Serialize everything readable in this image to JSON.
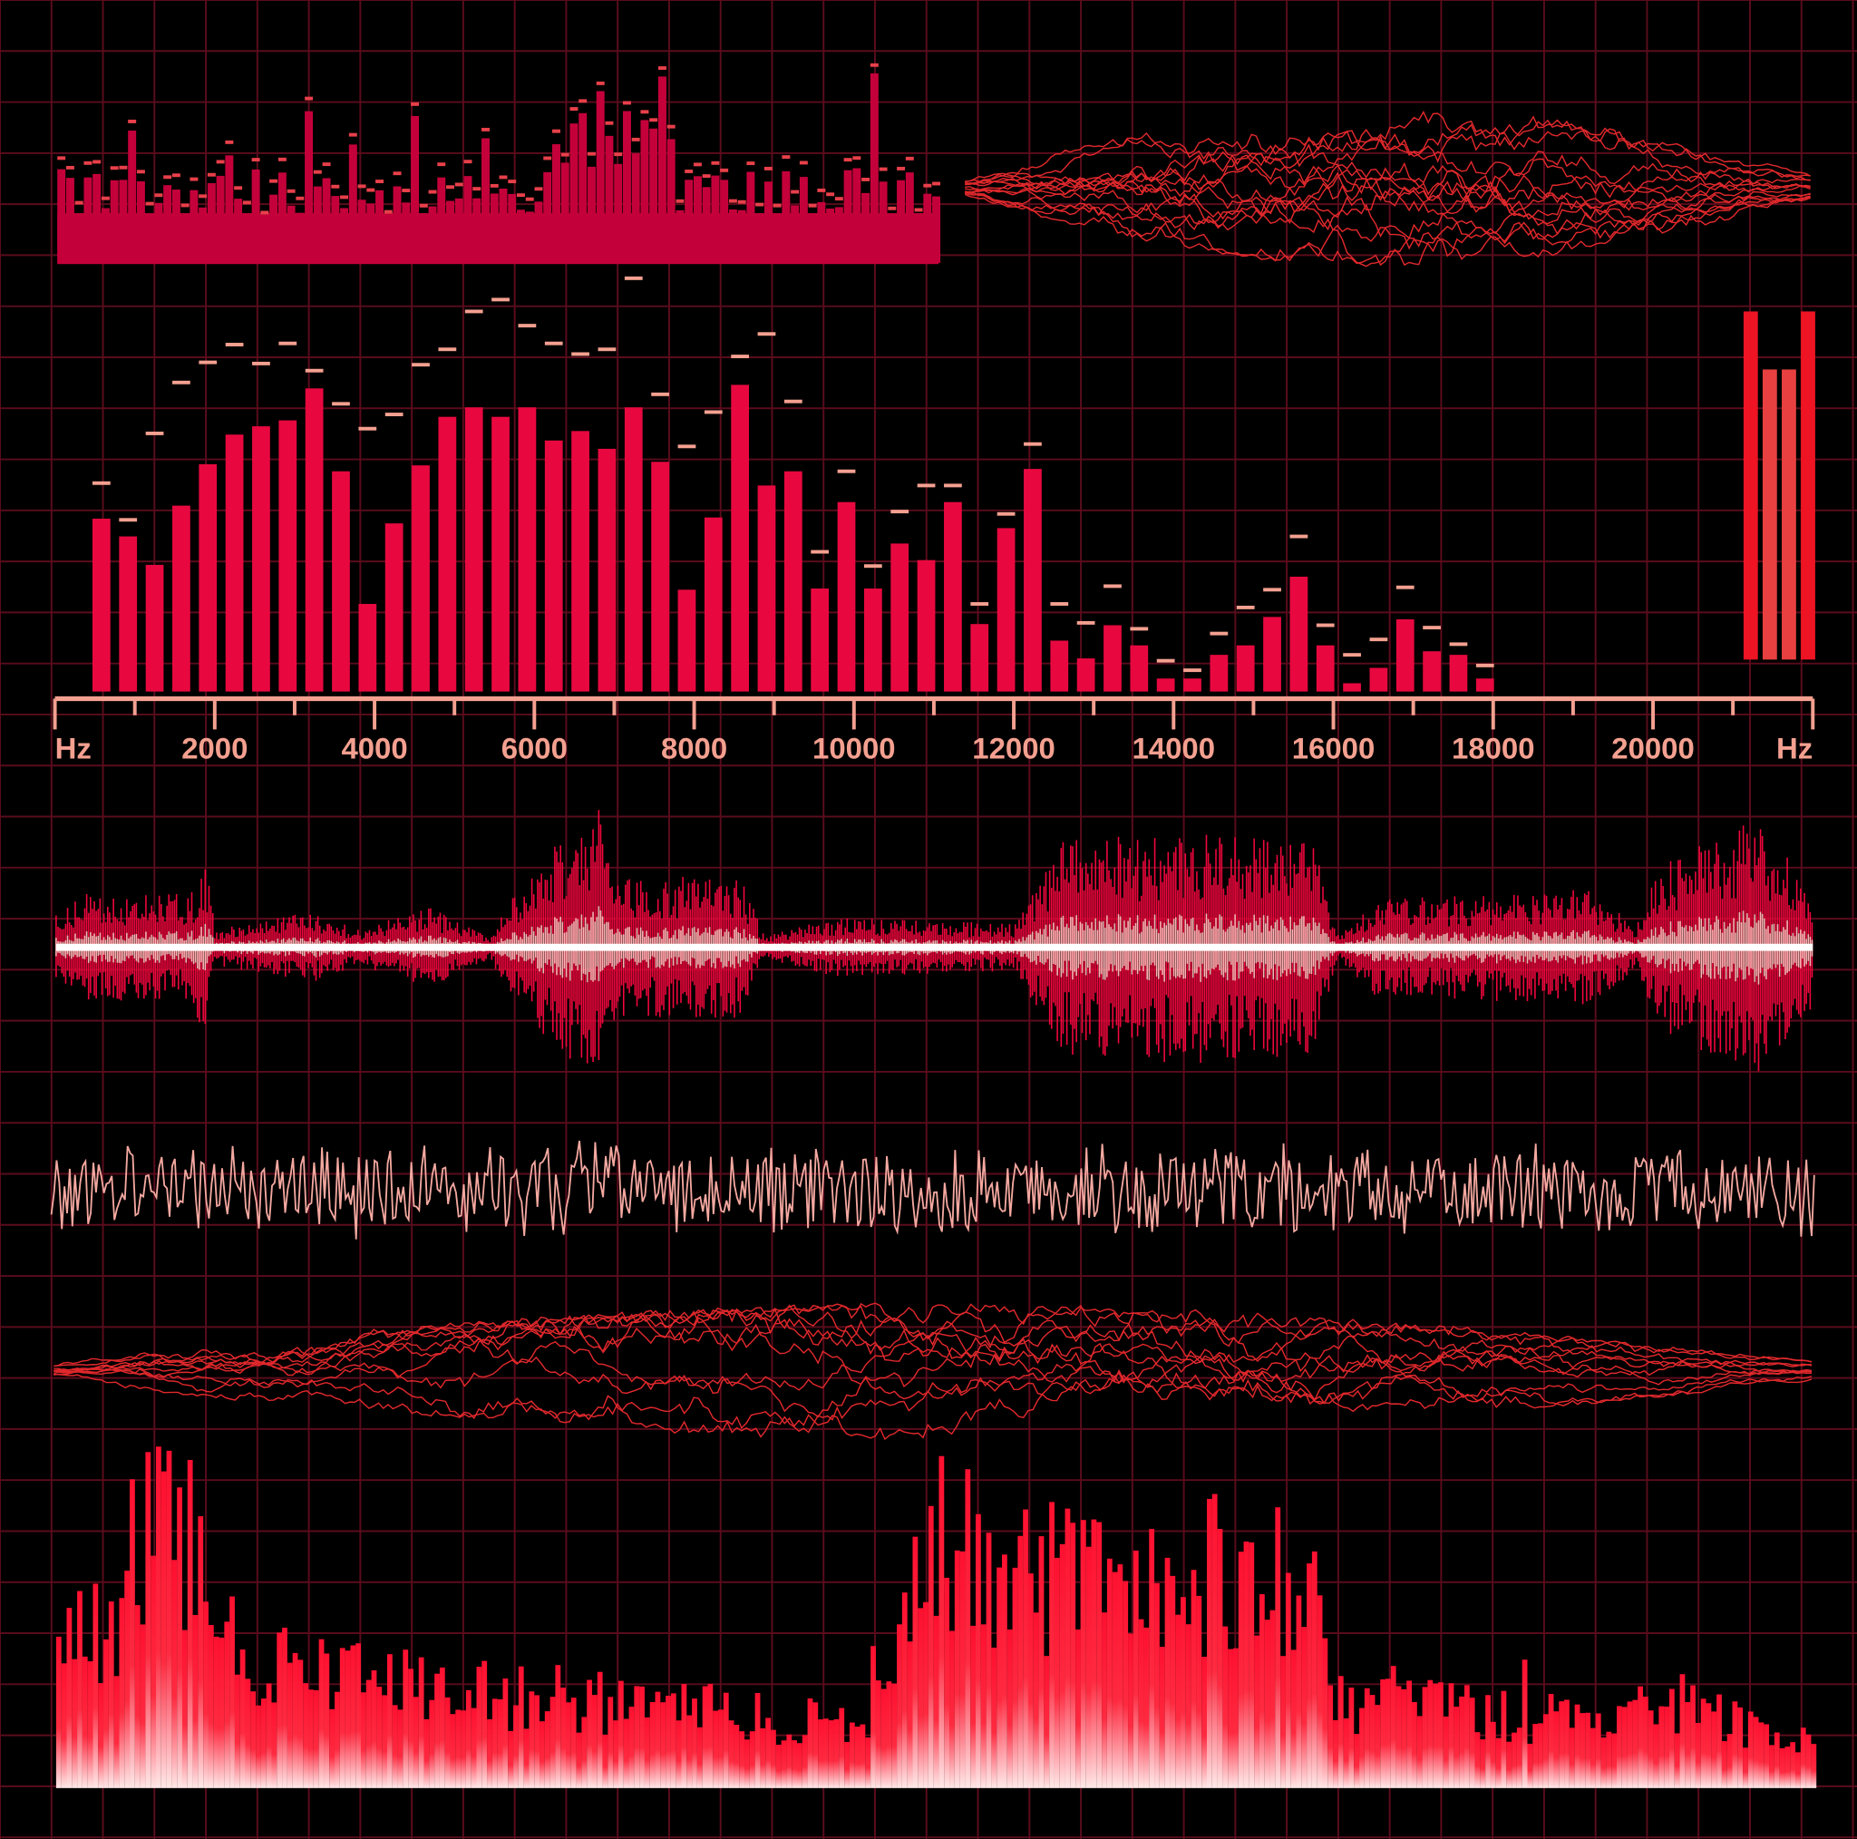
{
  "chart_data": {
    "type": "bar",
    "xlim": [
      0,
      22000
    ],
    "xticks": [
      {
        "value": 0,
        "label": "Hz"
      },
      2000,
      4000,
      6000,
      8000,
      10000,
      12000,
      14000,
      16000,
      18000,
      20000,
      {
        "value": 22000,
        "label": "Hz"
      }
    ],
    "x": [
      582,
      915,
      1248,
      1581,
      1914,
      2247,
      2580,
      2913,
      3246,
      3579,
      3912,
      4245,
      4578,
      4911,
      5244,
      5577,
      5910,
      6243,
      6576,
      6909,
      7242,
      7575,
      7908,
      8241,
      8574,
      8907,
      9240,
      9573,
      9906,
      10239,
      10572,
      10905,
      11238,
      11571,
      11904,
      12237,
      12570,
      12903,
      13236,
      13569,
      13902,
      14235,
      14568,
      14901,
      15234,
      15567,
      15900,
      16233,
      16566,
      16899,
      17232,
      17565,
      17898
    ],
    "values": [
      146,
      131,
      107,
      157,
      192,
      217,
      224,
      229,
      256,
      186,
      74,
      142,
      191,
      232,
      240,
      232,
      240,
      212,
      220,
      205,
      240,
      194,
      86,
      147,
      259,
      174,
      186,
      87,
      160,
      87,
      125,
      111,
      160,
      57,
      138,
      188,
      43,
      28,
      56,
      39,
      11,
      11,
      31,
      39,
      63,
      97,
      39,
      7,
      20,
      61,
      34,
      31,
      11
    ],
    "peaks": [
      176,
      145,
      218,
      261,
      278,
      293,
      277,
      294,
      271,
      243,
      222,
      234,
      276,
      289,
      321,
      331,
      309,
      294,
      285,
      289,
      349,
      251,
      207,
      236,
      283,
      302,
      245,
      118,
      186,
      106,
      152,
      174,
      174,
      74,
      150,
      209,
      74,
      58,
      89,
      53,
      26,
      18,
      49,
      71,
      86,
      131,
      56,
      31,
      44,
      88,
      54,
      40,
      22
    ],
    "color": "#e8083f",
    "peak_color": "#f4a090"
  }
}
